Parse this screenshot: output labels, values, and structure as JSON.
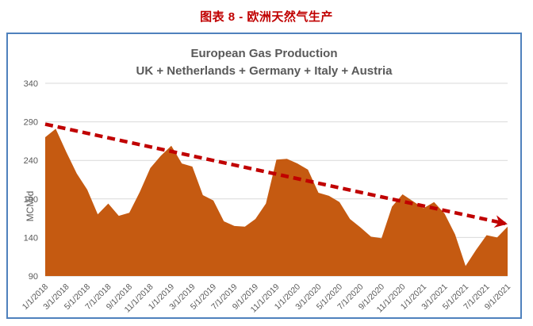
{
  "page": {
    "title": "图表 8 - 欧洲天然气生产"
  },
  "chart": {
    "title": "European Gas Production",
    "subtitle": "UK + Netherlands + Germany + Italy + Austria",
    "y_axis_title": "MCM/d"
  },
  "colors": {
    "page_title": "#C00000",
    "chart_title": "#595959",
    "axis_text": "#595959",
    "grid": "#D9D9D9",
    "axis_line": "#D0D0D0",
    "area_fill": "#C55A11",
    "trend_line": "#C00000",
    "box_border": "#4F81BD"
  },
  "chart_data": {
    "type": "area",
    "title": "European Gas Production",
    "subtitle": "UK + Netherlands + Germany + Italy + Austria",
    "xlabel": "",
    "ylabel": "MCM/d",
    "ylim": [
      90,
      340
    ],
    "yticks": [
      90,
      140,
      190,
      240,
      290,
      340
    ],
    "grid": true,
    "legend": "none",
    "series_name": "European gas production (UK + Netherlands + Germany + Italy + Austria)",
    "x": [
      "1/1/2018",
      "2/1/2018",
      "3/1/2018",
      "4/1/2018",
      "5/1/2018",
      "6/1/2018",
      "7/1/2018",
      "8/1/2018",
      "9/1/2018",
      "10/1/2018",
      "11/1/2018",
      "12/1/2018",
      "1/1/2019",
      "2/1/2019",
      "3/1/2019",
      "4/1/2019",
      "5/1/2019",
      "6/1/2019",
      "7/1/2019",
      "8/1/2019",
      "9/1/2019",
      "10/1/2019",
      "11/1/2019",
      "12/1/2019",
      "1/1/2020",
      "2/1/2020",
      "3/1/2020",
      "4/1/2020",
      "5/1/2020",
      "6/1/2020",
      "7/1/2020",
      "8/1/2020",
      "9/1/2020",
      "10/1/2020",
      "11/1/2020",
      "12/1/2020",
      "1/1/2021",
      "2/1/2021",
      "3/1/2021",
      "4/1/2021",
      "5/1/2021",
      "6/1/2021",
      "7/1/2021",
      "8/1/2021",
      "9/1/2021"
    ],
    "tick_every": 2,
    "x_tick_labels": [
      "1/1/2018",
      "3/1/2018",
      "5/1/2018",
      "7/1/2018",
      "9/1/2018",
      "11/1/2018",
      "1/1/2019",
      "3/1/2019",
      "5/1/2019",
      "7/1/2019",
      "9/1/2019",
      "11/1/2019",
      "1/1/2020",
      "3/1/2020",
      "5/1/2020",
      "7/1/2020",
      "9/1/2020",
      "11/1/2020",
      "1/1/2021",
      "3/1/2021",
      "5/1/2021",
      "7/1/2021",
      "9/1/2021"
    ],
    "values": [
      270,
      281,
      251,
      223,
      202,
      170,
      184,
      168,
      172,
      199,
      230,
      246,
      259,
      236,
      232,
      195,
      188,
      161,
      155,
      154,
      164,
      184,
      241,
      242,
      236,
      228,
      198,
      194,
      186,
      164,
      153,
      141,
      139,
      180,
      196,
      187,
      178,
      186,
      171,
      144,
      103,
      124,
      143,
      140,
      154
    ],
    "trend": {
      "type": "linear_dashed_arrow",
      "start_value": 287,
      "end_value": 158
    }
  }
}
